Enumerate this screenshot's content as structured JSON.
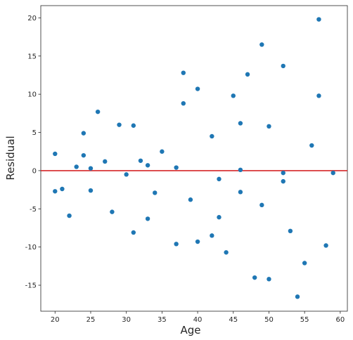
{
  "chart_data": {
    "type": "scatter",
    "title": "",
    "xlabel": "Age",
    "ylabel": "Residual",
    "xlim": [
      18,
      61
    ],
    "ylim": [
      -18.4,
      21.6
    ],
    "xticks": [
      20,
      25,
      30,
      35,
      40,
      45,
      50,
      55,
      60
    ],
    "yticks": [
      -15,
      -10,
      -5,
      0,
      5,
      10,
      15,
      20
    ],
    "grid": false,
    "legend": "none",
    "point_color": "#1f77b4",
    "reference_line": {
      "y": 0,
      "color": "#d62728"
    },
    "points": [
      {
        "x": 20,
        "y": 2.2
      },
      {
        "x": 20,
        "y": -2.7
      },
      {
        "x": 21,
        "y": -2.4
      },
      {
        "x": 22,
        "y": -5.9
      },
      {
        "x": 23,
        "y": 0.5
      },
      {
        "x": 24,
        "y": 4.9
      },
      {
        "x": 24,
        "y": 2.0
      },
      {
        "x": 25,
        "y": 0.3
      },
      {
        "x": 25,
        "y": -2.6
      },
      {
        "x": 26,
        "y": 7.7
      },
      {
        "x": 27,
        "y": 1.2
      },
      {
        "x": 28,
        "y": -5.4
      },
      {
        "x": 29,
        "y": 6.0
      },
      {
        "x": 30,
        "y": -0.5
      },
      {
        "x": 31,
        "y": 5.9
      },
      {
        "x": 31,
        "y": -8.1
      },
      {
        "x": 32,
        "y": 1.3
      },
      {
        "x": 33,
        "y": 0.7
      },
      {
        "x": 33,
        "y": -6.3
      },
      {
        "x": 34,
        "y": -2.9
      },
      {
        "x": 35,
        "y": 2.5
      },
      {
        "x": 37,
        "y": 0.4
      },
      {
        "x": 37,
        "y": -9.6
      },
      {
        "x": 38,
        "y": 12.8
      },
      {
        "x": 38,
        "y": 8.8
      },
      {
        "x": 39,
        "y": -3.8
      },
      {
        "x": 40,
        "y": 10.7
      },
      {
        "x": 40,
        "y": -9.3
      },
      {
        "x": 42,
        "y": 4.5
      },
      {
        "x": 42,
        "y": -8.5
      },
      {
        "x": 43,
        "y": -1.1
      },
      {
        "x": 43,
        "y": -6.1
      },
      {
        "x": 44,
        "y": -10.7
      },
      {
        "x": 45,
        "y": 9.8
      },
      {
        "x": 46,
        "y": 6.2
      },
      {
        "x": 46,
        "y": 0.1
      },
      {
        "x": 46,
        "y": -2.8
      },
      {
        "x": 47,
        "y": 12.6
      },
      {
        "x": 48,
        "y": -14.0
      },
      {
        "x": 49,
        "y": 16.5
      },
      {
        "x": 49,
        "y": -4.5
      },
      {
        "x": 50,
        "y": 5.8
      },
      {
        "x": 50,
        "y": -14.2
      },
      {
        "x": 52,
        "y": 13.7
      },
      {
        "x": 52,
        "y": -0.3
      },
      {
        "x": 52,
        "y": -1.4
      },
      {
        "x": 53,
        "y": -7.9
      },
      {
        "x": 54,
        "y": -16.5
      },
      {
        "x": 55,
        "y": -12.1
      },
      {
        "x": 56,
        "y": 3.3
      },
      {
        "x": 57,
        "y": 19.8
      },
      {
        "x": 57,
        "y": 9.8
      },
      {
        "x": 58,
        "y": -9.8
      },
      {
        "x": 59,
        "y": -0.3
      }
    ]
  }
}
